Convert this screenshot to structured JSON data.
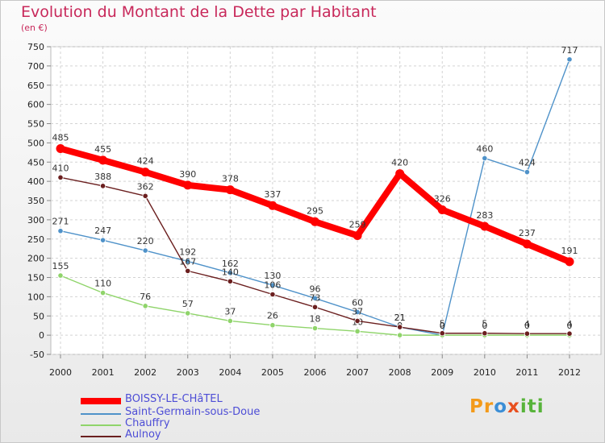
{
  "header": {
    "title": "Evolution du Montant de la Dette par Habitant",
    "unit": "(en €)"
  },
  "logo": {
    "parts": [
      "Pr",
      "o",
      "x",
      "iti"
    ]
  },
  "chart_data": {
    "type": "line",
    "title": "Evolution du Montant de la Dette par Habitant",
    "ylabel": "(en €)",
    "ylim": [
      -50,
      750
    ],
    "yticks": [
      -50,
      0,
      50,
      100,
      150,
      200,
      250,
      300,
      350,
      400,
      450,
      500,
      550,
      600,
      650,
      700,
      750
    ],
    "x": [
      "2000",
      "2001",
      "2002",
      "2003",
      "2004",
      "2005",
      "2006",
      "2007",
      "2008",
      "2009",
      "2010",
      "2011",
      "2012"
    ],
    "grid": true,
    "legend_position": "bottom-left",
    "series": [
      {
        "name": "BOISSY-LE-CHâTEL",
        "color": "#ff0000",
        "values": [
          485,
          455,
          424,
          390,
          378,
          337,
          295,
          259,
          420,
          326,
          283,
          237,
          191
        ],
        "labels": [
          "485",
          "455",
          "424",
          "390",
          "378",
          "337",
          "295",
          "259",
          "420",
          "326",
          "283",
          "237",
          "191"
        ]
      },
      {
        "name": "Saint-Germain-sous-Doue",
        "color": "#4f92c9",
        "values": [
          271,
          247,
          220,
          192,
          162,
          130,
          96,
          60,
          21,
          0,
          460,
          424,
          717
        ],
        "labels": [
          "271",
          "247",
          "220",
          "192",
          "162",
          "130",
          "96",
          "60",
          "21",
          "0",
          "460",
          "424",
          "717"
        ]
      },
      {
        "name": "Chauffry",
        "color": "#8fd46a",
        "values": [
          155,
          110,
          76,
          57,
          37,
          26,
          18,
          10,
          0,
          0,
          0,
          0,
          0
        ],
        "labels": [
          "155",
          "110",
          "76",
          "57",
          "37",
          "26",
          "18",
          "10",
          "0",
          "0",
          "0",
          "0",
          "0"
        ]
      },
      {
        "name": "Aulnoy",
        "color": "#6b1f1f",
        "values": [
          410,
          388,
          362,
          167,
          140,
          106,
          73,
          37,
          21,
          5,
          5,
          4,
          4
        ],
        "labels": [
          "410",
          "388",
          "362",
          "167",
          "140",
          "106",
          "73",
          "37",
          "21",
          "5",
          "5",
          "4",
          "4"
        ]
      }
    ]
  }
}
